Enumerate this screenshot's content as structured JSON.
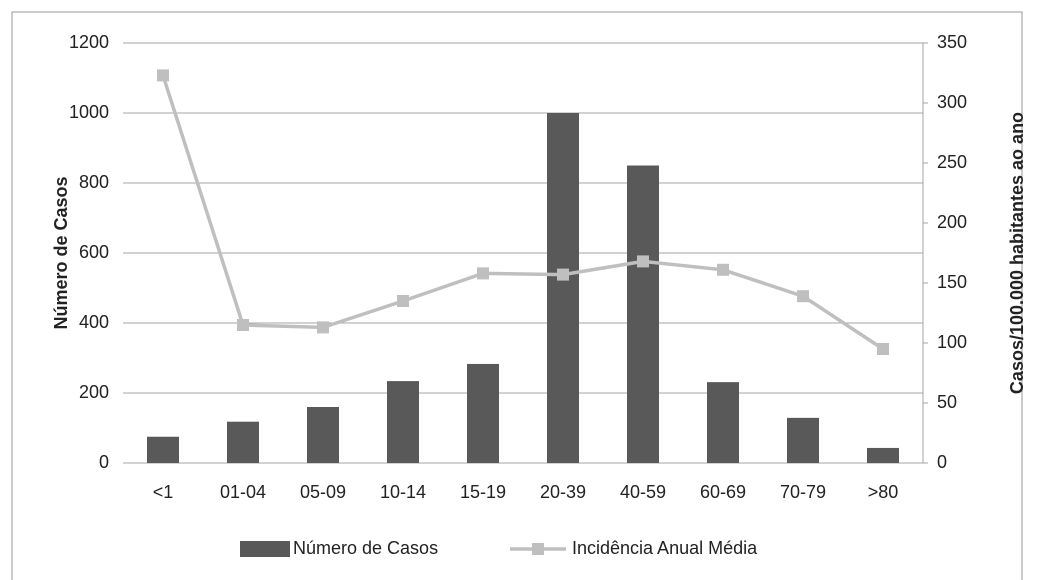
{
  "chart_data": {
    "type": "bar-line",
    "categories": [
      "<1",
      "01-04",
      "05-09",
      "10-14",
      "15-19",
      "20-39",
      "40-59",
      "60-69",
      "70-79",
      ">80"
    ],
    "series": [
      {
        "name": "Número de Casos",
        "type": "bar",
        "color": "#595959",
        "values": [
          75,
          118,
          160,
          234,
          283,
          1000,
          850,
          231,
          129,
          43
        ]
      },
      {
        "name": "Incidência Anual Média",
        "type": "line",
        "axis": "y2",
        "color": "#bfbfbf",
        "values": [
          323,
          115,
          113,
          135,
          158,
          157,
          168,
          161,
          139,
          95
        ]
      }
    ],
    "ylabel": "Número de Casos",
    "y2label": "Casos/100.000 habitantes ao ano",
    "ylim": [
      0,
      1200
    ],
    "yticks": [
      0,
      200,
      400,
      600,
      800,
      1000,
      1200
    ],
    "y2lim": [
      0,
      350
    ],
    "y2ticks": [
      0,
      50,
      100,
      150,
      200,
      250,
      300,
      350
    ],
    "grid": true,
    "legend": "bottom"
  }
}
